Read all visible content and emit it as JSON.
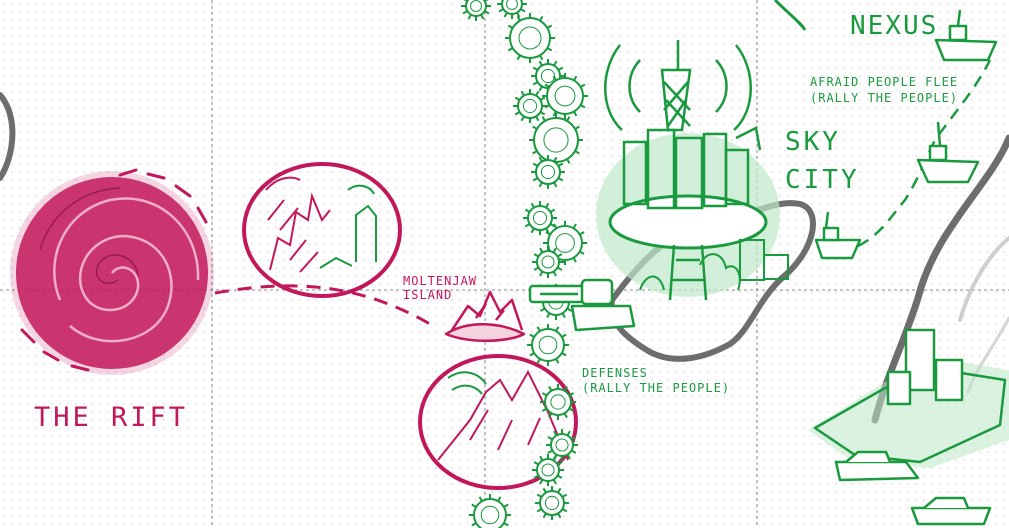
{
  "colors": {
    "rift": "#c2185b",
    "rift_dark": "#a3124a",
    "green": "#1a9a3f",
    "green_light": "#bfe8c9",
    "coast": "#6d6d6d",
    "grid": "#8a8a8a"
  },
  "labels": {
    "rift": "THE RIFT",
    "moltenjaw_1": "MOLTENJAW",
    "moltenjaw_2": "ISLAND",
    "sky_city_1": "SKY",
    "sky_city_2": "CITY",
    "nexus": "NEXUS",
    "afraid_1": "AFRAID PEOPLE FLEE",
    "afraid_2": "(RALLY THE PEOPLE)",
    "defenses_1": "DEFENSES",
    "defenses_2": "(RALLY THE PEOPLE)"
  }
}
